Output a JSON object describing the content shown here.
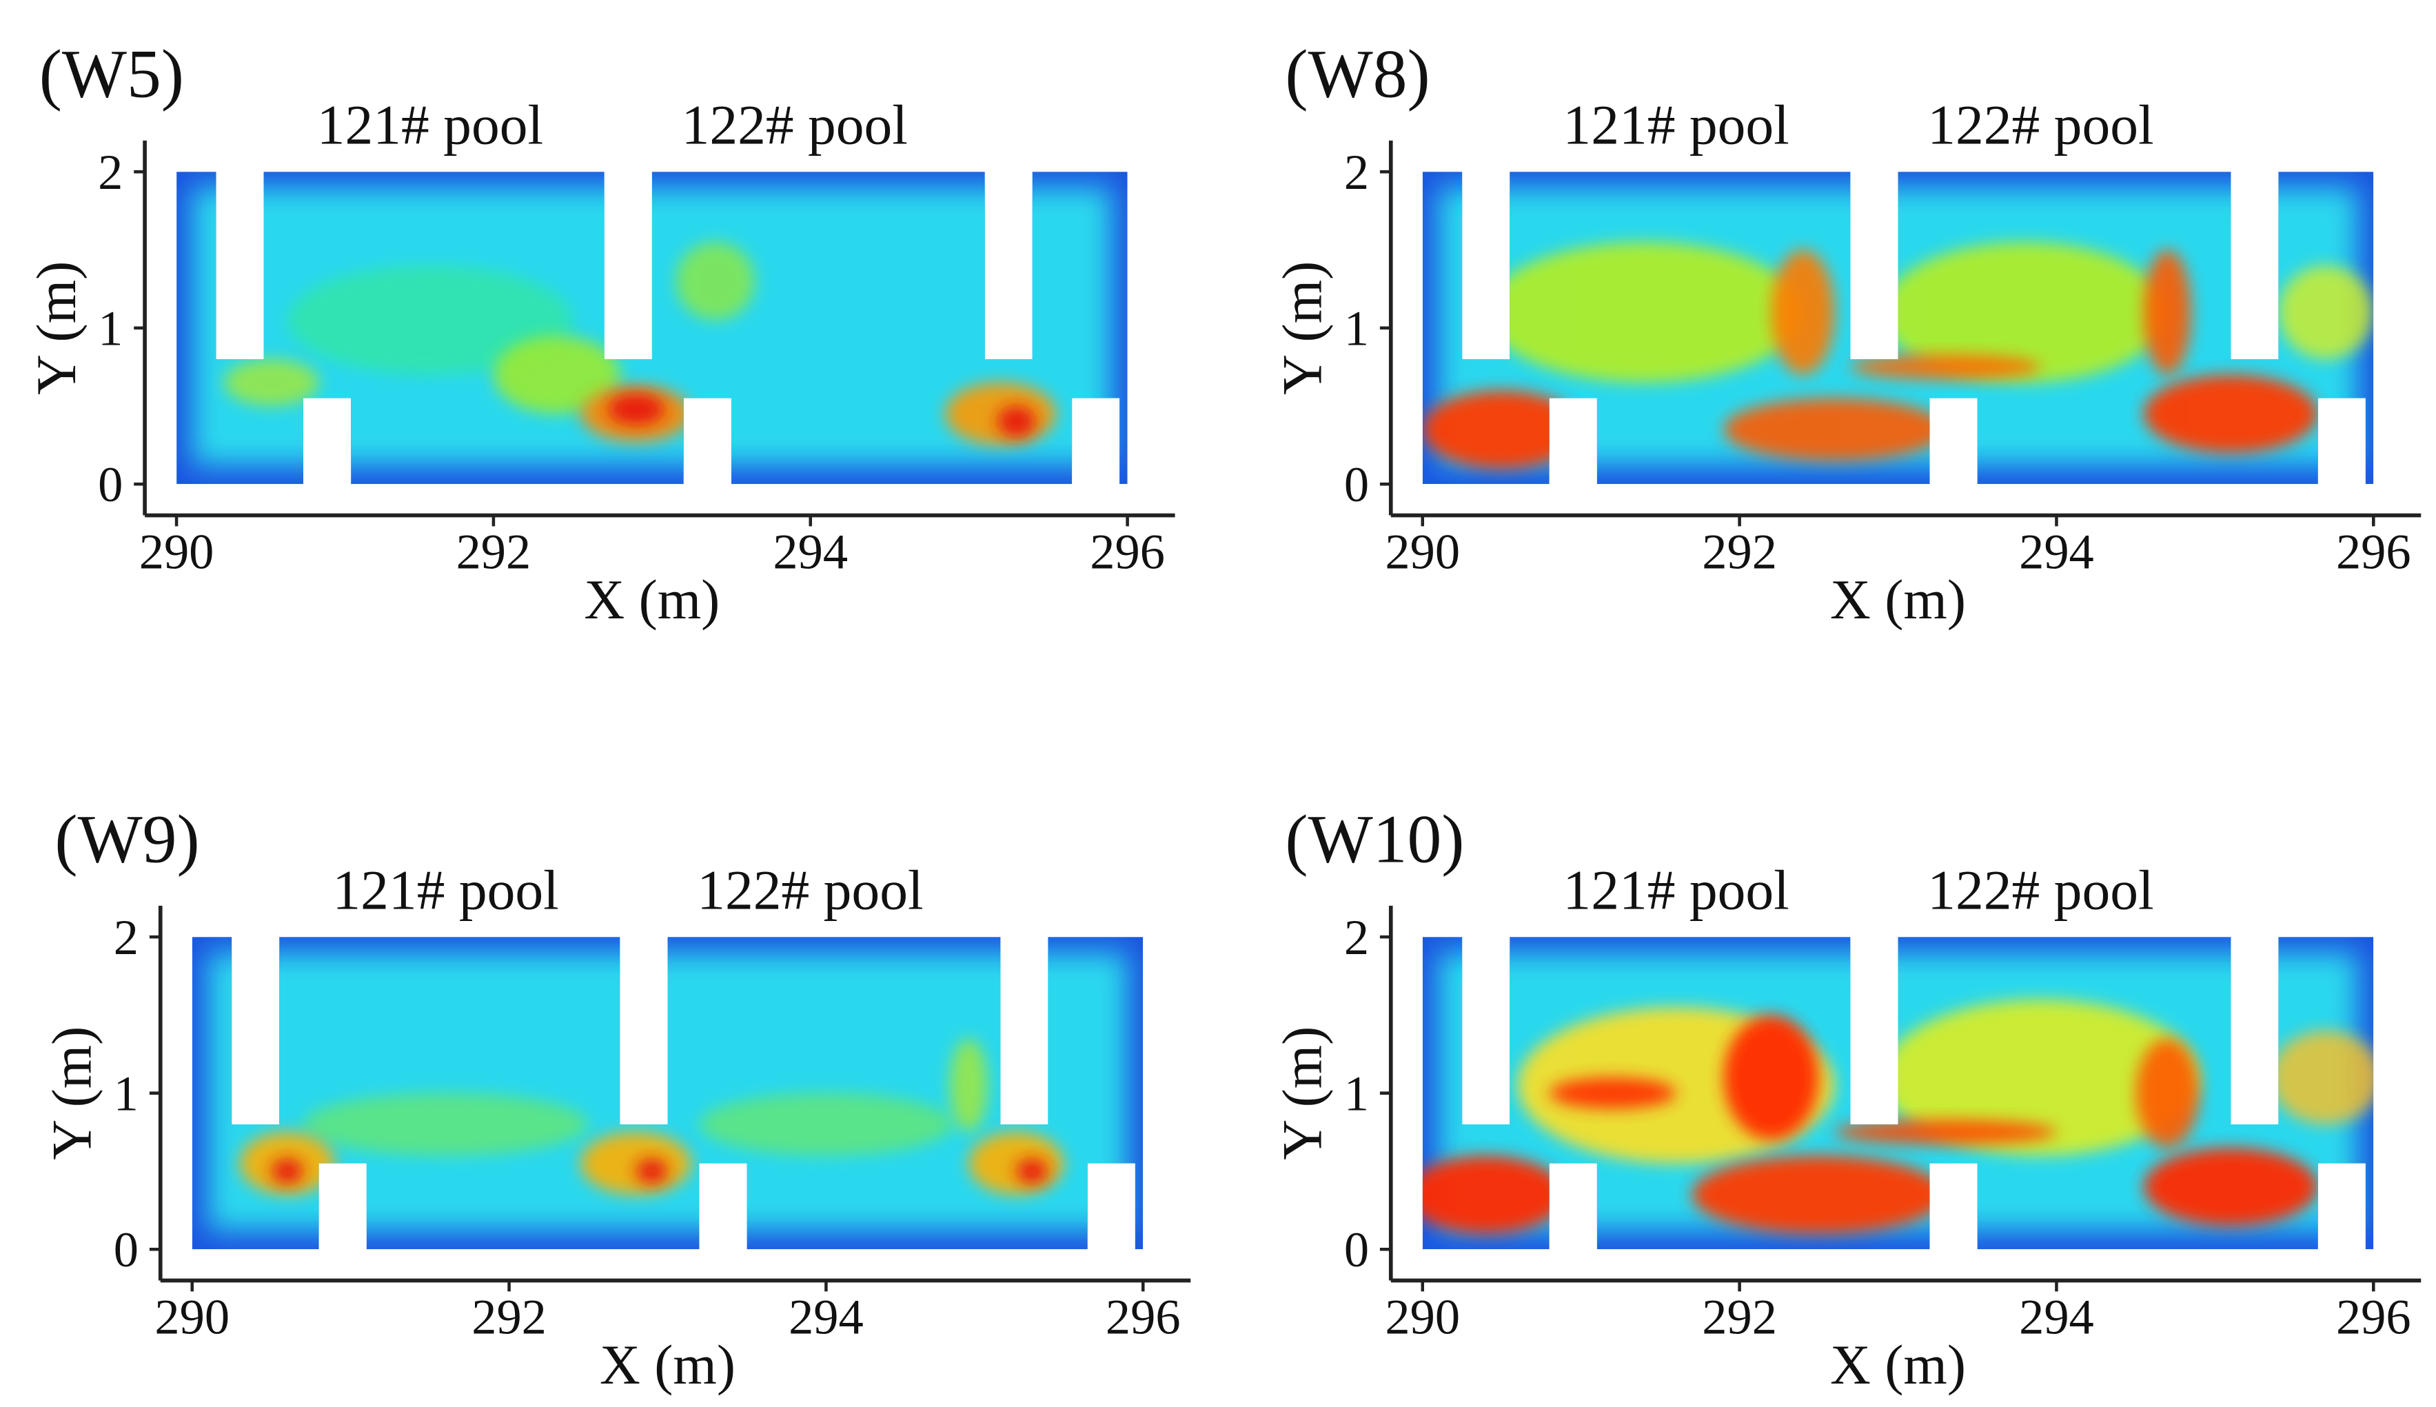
{
  "chart_data": [
    {
      "type": "contour",
      "title": "(W5)",
      "annotations": [
        "121# pool",
        "122# pool"
      ],
      "x_label": "X (m)",
      "y_label": "Y (m)",
      "xlim": [
        289.8,
        296.3
      ],
      "ylim": [
        -0.2,
        2.2
      ],
      "xticks": [
        290,
        292,
        294,
        296
      ],
      "yticks": [
        0,
        1,
        2
      ]
    },
    {
      "type": "contour",
      "title": "(W8)",
      "annotations": [
        "121# pool",
        "122# pool"
      ],
      "x_label": "X (m)",
      "y_label": "Y (m)",
      "xlim": [
        289.8,
        296.3
      ],
      "ylim": [
        -0.2,
        2.2
      ],
      "xticks": [
        290,
        292,
        294,
        296
      ],
      "yticks": [
        0,
        1,
        2
      ]
    },
    {
      "type": "contour",
      "title": "(W9)",
      "annotations": [
        "121# pool",
        "122# pool"
      ],
      "x_label": "X (m)",
      "y_label": "Y (m)",
      "xlim": [
        289.8,
        296.3
      ],
      "ylim": [
        -0.2,
        2.2
      ],
      "xticks": [
        290,
        292,
        294,
        296
      ],
      "yticks": [
        0,
        1,
        2
      ]
    },
    {
      "type": "contour",
      "title": "(W10)",
      "annotations": [
        "121# pool",
        "122# pool"
      ],
      "x_label": "X (m)",
      "y_label": "Y (m)",
      "xlim": [
        289.8,
        296.3
      ],
      "ylim": [
        -0.2,
        2.2
      ],
      "xticks": [
        290,
        292,
        294,
        296
      ],
      "yticks": [
        0,
        1,
        2
      ]
    }
  ]
}
